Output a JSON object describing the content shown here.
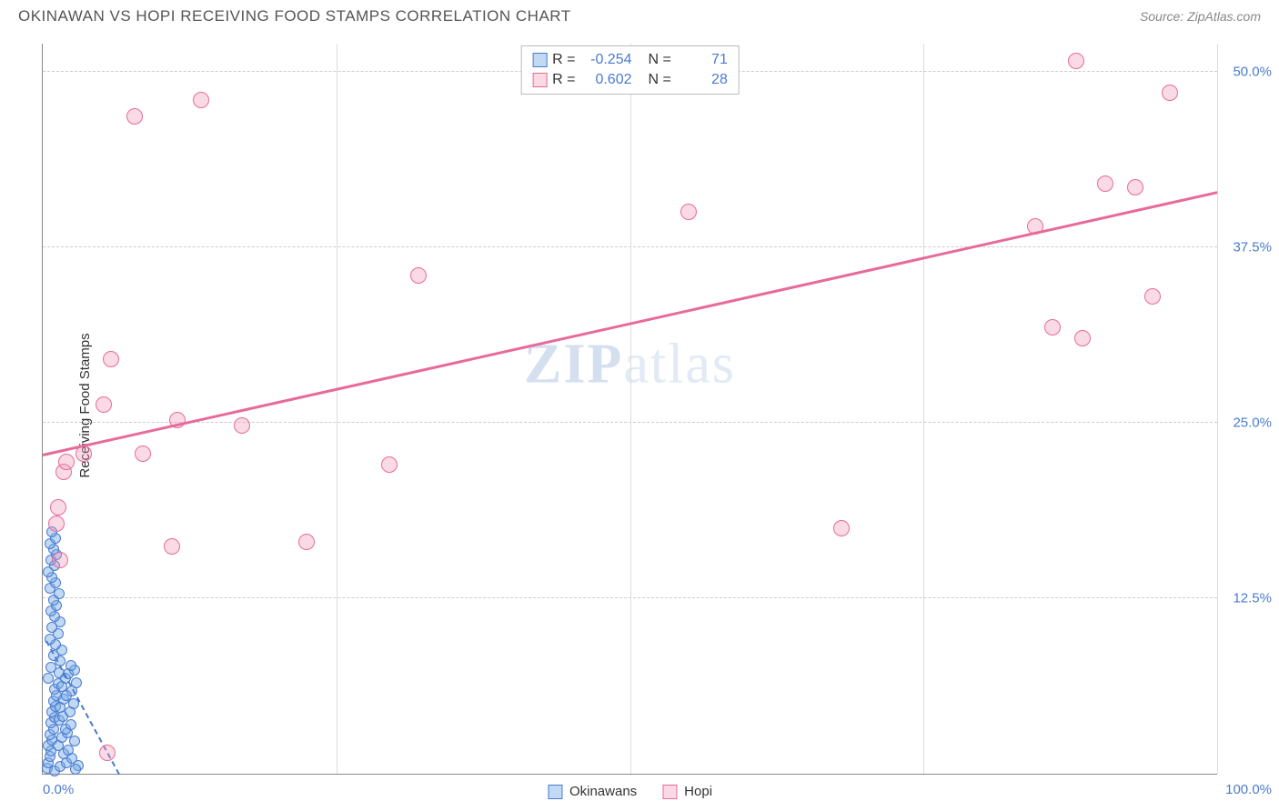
{
  "header": {
    "title": "OKINAWAN VS HOPI RECEIVING FOOD STAMPS CORRELATION CHART",
    "source": "Source: ZipAtlas.com"
  },
  "watermark": {
    "zip": "ZIP",
    "atlas": "atlas"
  },
  "chart": {
    "type": "scatter",
    "ylabel": "Receiving Food Stamps",
    "xlim": [
      0,
      100
    ],
    "ylim": [
      0,
      52
    ],
    "yticks": [
      {
        "v": 12.5,
        "label": "12.5%"
      },
      {
        "v": 25.0,
        "label": "25.0%"
      },
      {
        "v": 37.5,
        "label": "37.5%"
      },
      {
        "v": 50.0,
        "label": "50.0%"
      }
    ],
    "xticks_labels": {
      "min": "0.0%",
      "max": "100.0%"
    },
    "grid_color": "#cccccc",
    "v_gridlines_x": [
      25,
      50,
      75,
      100
    ],
    "background_color": "#ffffff",
    "series": [
      {
        "name": "Okinawans",
        "color_fill": "rgba(120,170,230,0.45)",
        "color_stroke": "#4a7bd0",
        "marker_size": 12,
        "R": "-0.254",
        "N": "71",
        "trend": {
          "x1": 0.3,
          "y1": 9.5,
          "x2": 6.5,
          "y2": 0.0,
          "style": "dashed"
        },
        "points": [
          {
            "x": 0.4,
            "y": 0.4
          },
          {
            "x": 0.5,
            "y": 0.8
          },
          {
            "x": 0.6,
            "y": 1.2
          },
          {
            "x": 0.7,
            "y": 1.6
          },
          {
            "x": 0.5,
            "y": 2.0
          },
          {
            "x": 0.8,
            "y": 2.4
          },
          {
            "x": 0.6,
            "y": 2.8
          },
          {
            "x": 0.9,
            "y": 3.2
          },
          {
            "x": 0.7,
            "y": 3.6
          },
          {
            "x": 1.0,
            "y": 4.0
          },
          {
            "x": 0.8,
            "y": 4.4
          },
          {
            "x": 1.1,
            "y": 4.8
          },
          {
            "x": 0.9,
            "y": 5.2
          },
          {
            "x": 1.2,
            "y": 5.6
          },
          {
            "x": 1.0,
            "y": 6.0
          },
          {
            "x": 1.3,
            "y": 6.4
          },
          {
            "x": 0.5,
            "y": 6.8
          },
          {
            "x": 1.4,
            "y": 7.2
          },
          {
            "x": 0.7,
            "y": 7.6
          },
          {
            "x": 1.5,
            "y": 8.0
          },
          {
            "x": 0.9,
            "y": 8.4
          },
          {
            "x": 1.6,
            "y": 8.8
          },
          {
            "x": 1.1,
            "y": 9.2
          },
          {
            "x": 0.6,
            "y": 9.6
          },
          {
            "x": 1.3,
            "y": 10.0
          },
          {
            "x": 0.8,
            "y": 10.4
          },
          {
            "x": 1.5,
            "y": 10.8
          },
          {
            "x": 1.0,
            "y": 11.2
          },
          {
            "x": 0.7,
            "y": 11.6
          },
          {
            "x": 1.2,
            "y": 12.0
          },
          {
            "x": 0.9,
            "y": 12.4
          },
          {
            "x": 1.4,
            "y": 12.8
          },
          {
            "x": 0.6,
            "y": 13.2
          },
          {
            "x": 1.1,
            "y": 13.6
          },
          {
            "x": 0.8,
            "y": 14.0
          },
          {
            "x": 0.5,
            "y": 14.4
          },
          {
            "x": 1.0,
            "y": 14.8
          },
          {
            "x": 0.7,
            "y": 15.2
          },
          {
            "x": 1.2,
            "y": 15.6
          },
          {
            "x": 0.9,
            "y": 16.0
          },
          {
            "x": 0.6,
            "y": 16.4
          },
          {
            "x": 1.1,
            "y": 16.8
          },
          {
            "x": 0.8,
            "y": 17.2
          },
          {
            "x": 1.0,
            "y": 0.2
          },
          {
            "x": 1.5,
            "y": 0.5
          },
          {
            "x": 2.0,
            "y": 0.8
          },
          {
            "x": 2.5,
            "y": 1.1
          },
          {
            "x": 3.0,
            "y": 0.6
          },
          {
            "x": 1.8,
            "y": 1.4
          },
          {
            "x": 2.2,
            "y": 1.7
          },
          {
            "x": 1.3,
            "y": 2.0
          },
          {
            "x": 2.7,
            "y": 2.3
          },
          {
            "x": 1.6,
            "y": 2.6
          },
          {
            "x": 2.1,
            "y": 2.9
          },
          {
            "x": 1.9,
            "y": 3.2
          },
          {
            "x": 2.4,
            "y": 3.5
          },
          {
            "x": 1.4,
            "y": 3.8
          },
          {
            "x": 2.8,
            "y": 0.3
          },
          {
            "x": 1.7,
            "y": 4.1
          },
          {
            "x": 2.3,
            "y": 4.4
          },
          {
            "x": 1.5,
            "y": 4.7
          },
          {
            "x": 2.6,
            "y": 5.0
          },
          {
            "x": 1.8,
            "y": 5.3
          },
          {
            "x": 2.0,
            "y": 5.6
          },
          {
            "x": 2.5,
            "y": 5.9
          },
          {
            "x": 1.6,
            "y": 6.2
          },
          {
            "x": 2.9,
            "y": 6.5
          },
          {
            "x": 1.9,
            "y": 6.8
          },
          {
            "x": 2.2,
            "y": 7.1
          },
          {
            "x": 2.7,
            "y": 7.4
          },
          {
            "x": 2.4,
            "y": 7.7
          }
        ]
      },
      {
        "name": "Hopi",
        "color_fill": "rgba(240,150,180,0.35)",
        "color_stroke": "#e86a9a",
        "marker_size": 18,
        "R": "0.602",
        "N": "28",
        "trend": {
          "x1": 0,
          "y1": 22.8,
          "x2": 100,
          "y2": 41.5,
          "style": "solid"
        },
        "points": [
          {
            "x": 1.2,
            "y": 17.8
          },
          {
            "x": 1.3,
            "y": 19.0
          },
          {
            "x": 1.5,
            "y": 15.2
          },
          {
            "x": 1.8,
            "y": 21.5
          },
          {
            "x": 2.0,
            "y": 22.2
          },
          {
            "x": 3.5,
            "y": 22.8
          },
          {
            "x": 5.2,
            "y": 26.3
          },
          {
            "x": 5.5,
            "y": 1.5
          },
          {
            "x": 5.8,
            "y": 29.5
          },
          {
            "x": 7.8,
            "y": 46.8
          },
          {
            "x": 8.5,
            "y": 22.8
          },
          {
            "x": 11.0,
            "y": 16.2
          },
          {
            "x": 11.5,
            "y": 25.2
          },
          {
            "x": 13.5,
            "y": 48.0
          },
          {
            "x": 17.0,
            "y": 24.8
          },
          {
            "x": 22.5,
            "y": 16.5
          },
          {
            "x": 29.5,
            "y": 22.0
          },
          {
            "x": 32.0,
            "y": 35.5
          },
          {
            "x": 55.0,
            "y": 40.0
          },
          {
            "x": 68.0,
            "y": 17.5
          },
          {
            "x": 84.5,
            "y": 39.0
          },
          {
            "x": 86.0,
            "y": 31.8
          },
          {
            "x": 88.0,
            "y": 50.8
          },
          {
            "x": 88.5,
            "y": 31.0
          },
          {
            "x": 90.5,
            "y": 42.0
          },
          {
            "x": 93.0,
            "y": 41.8
          },
          {
            "x": 94.5,
            "y": 34.0
          },
          {
            "x": 96.0,
            "y": 48.5
          }
        ]
      }
    ],
    "legend": [
      {
        "swatch": "blue",
        "label": "Okinawans"
      },
      {
        "swatch": "pink",
        "label": "Hopi"
      }
    ]
  }
}
